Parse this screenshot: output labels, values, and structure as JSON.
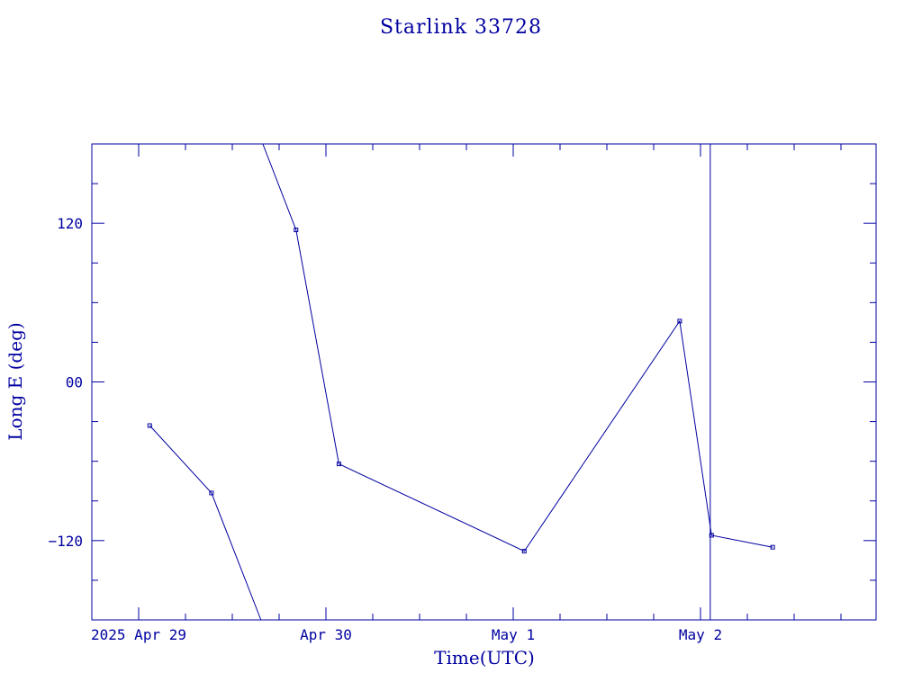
{
  "chart_data": {
    "type": "line",
    "title": "Starlink 33728",
    "xlabel": "Time(UTC)",
    "ylabel": "Long E (deg)",
    "color": "#0000a0",
    "xlim": [
      "2025-04-28T18:00",
      "2025-05-02T22:30"
    ],
    "ylim": [
      -180,
      180
    ],
    "x_ticks": [
      {
        "value": "2025-04-29T00:00",
        "label": "2025 Apr 29"
      },
      {
        "value": "2025-04-30T00:00",
        "label": "Apr 30"
      },
      {
        "value": "2025-05-01T00:00",
        "label": "May  1"
      },
      {
        "value": "2025-05-02T00:00",
        "label": "May  2"
      }
    ],
    "y_ticks": [
      {
        "value": 120,
        "label": "120"
      },
      {
        "value": 0,
        "label": "00"
      },
      {
        "value": -120,
        "label": "−120"
      }
    ],
    "marker_line_x": "2025-05-02T01:15",
    "segments": [
      [
        {
          "x": "2025-04-29T01:25",
          "y": -33
        },
        {
          "x": "2025-04-29T09:20",
          "y": -84
        },
        {
          "x": "2025-04-29T15:40",
          "y": -180
        }
      ],
      [
        {
          "x": "2025-04-29T15:55",
          "y": 180
        },
        {
          "x": "2025-04-29T20:10",
          "y": 115
        },
        {
          "x": "2025-04-30T01:40",
          "y": -62
        },
        {
          "x": "2025-05-01T01:25",
          "y": -128
        },
        {
          "x": "2025-05-01T21:20",
          "y": 46
        },
        {
          "x": "2025-05-02T01:25",
          "y": -116
        },
        {
          "x": "2025-05-02T09:15",
          "y": -125
        }
      ]
    ]
  }
}
